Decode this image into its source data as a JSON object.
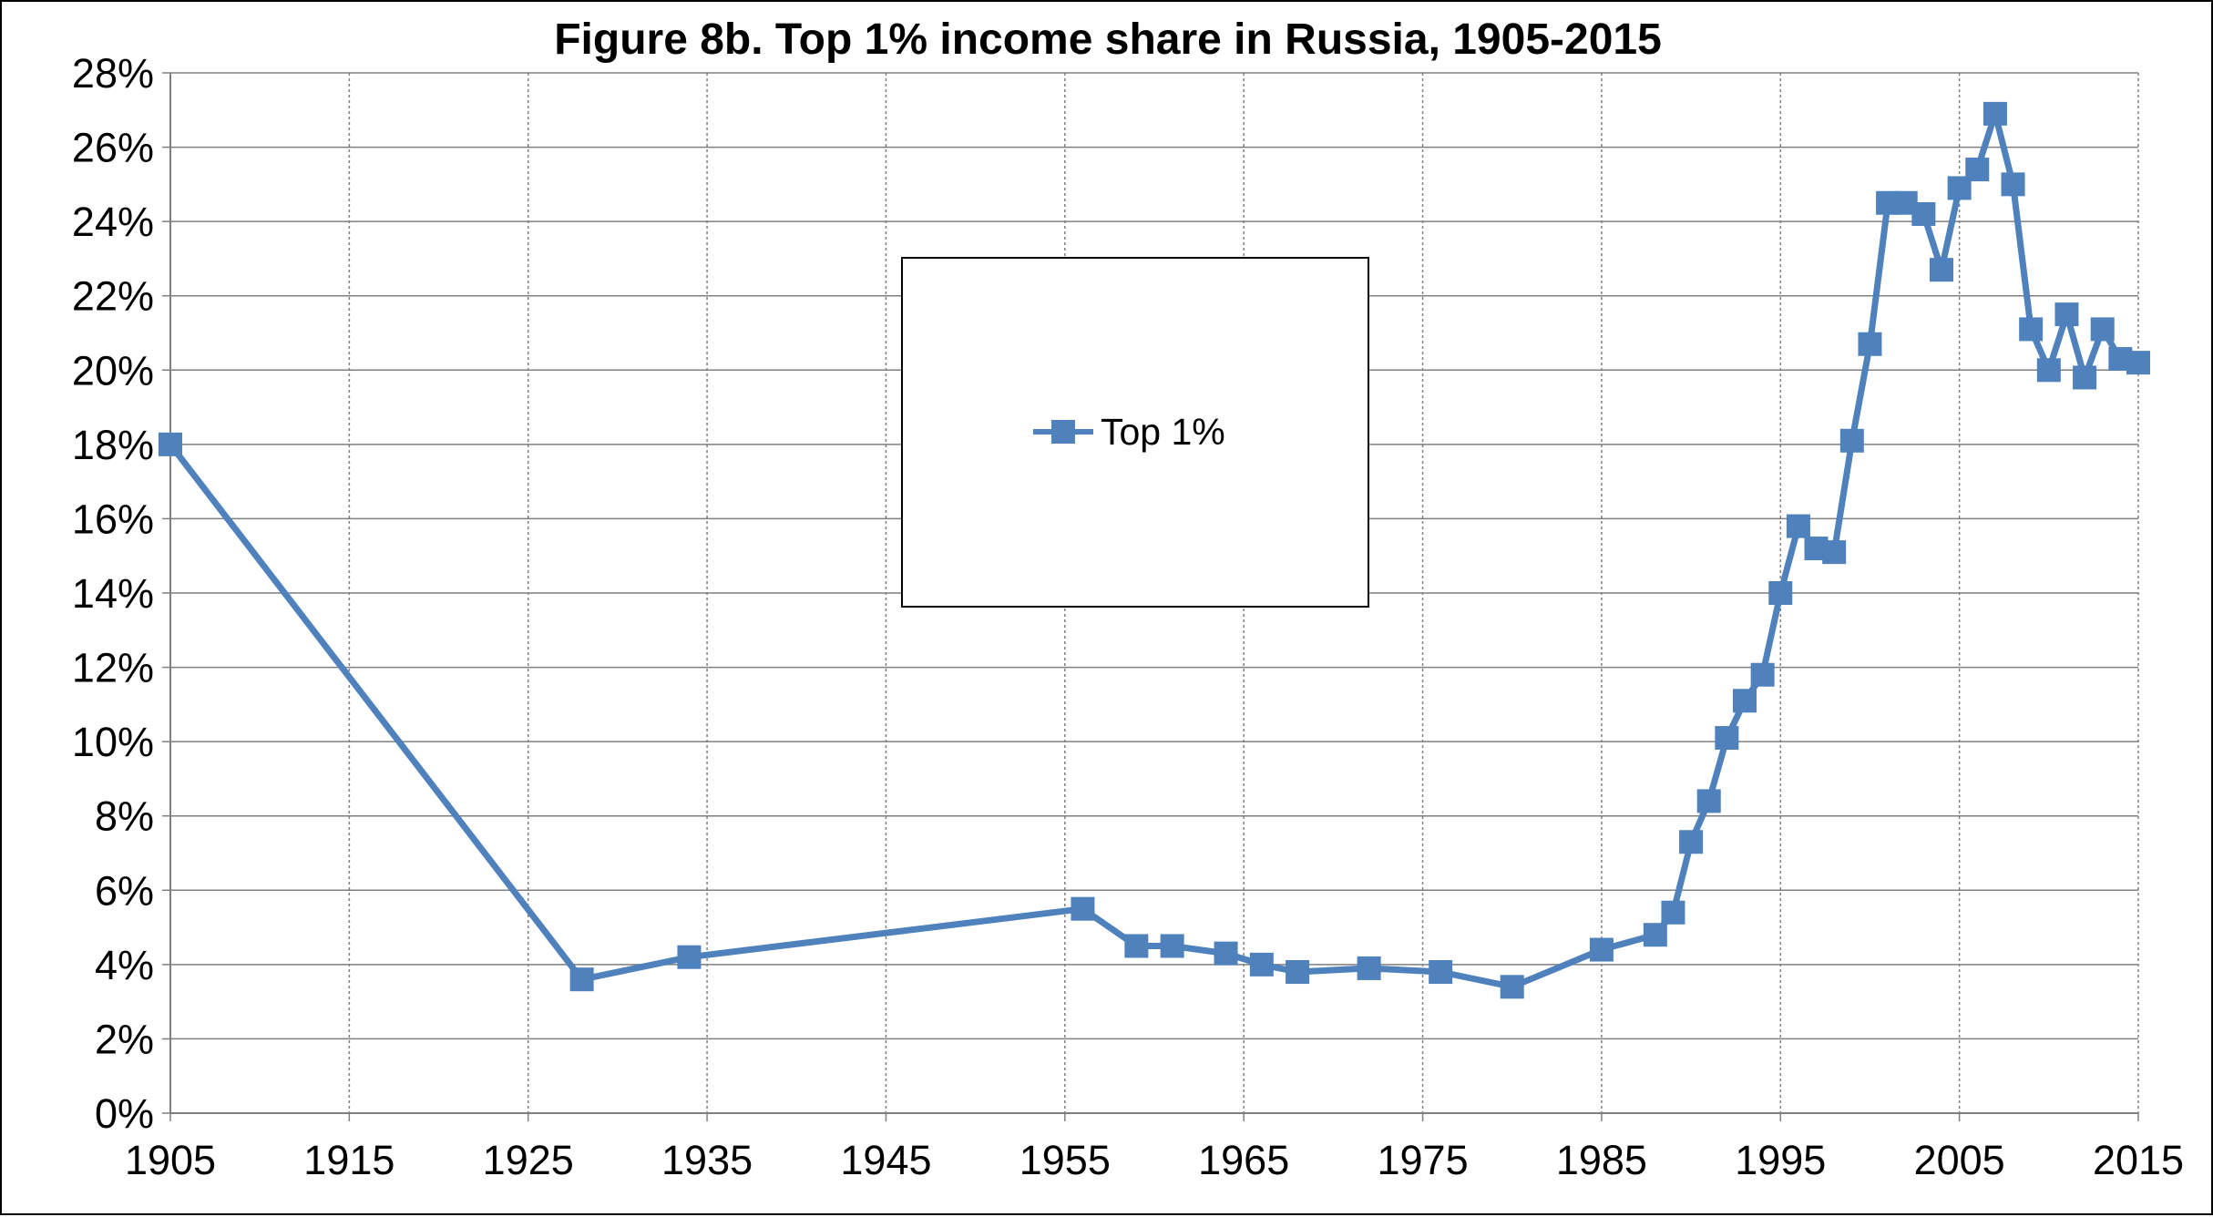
{
  "chart_data": {
    "type": "line",
    "title": "Figure 8b. Top 1% income share in Russia, 1905-2015",
    "xlabel": "",
    "ylabel": "",
    "xlim": [
      1905,
      2015
    ],
    "ylim": [
      0,
      28
    ],
    "x_ticks": [
      1905,
      1915,
      1925,
      1935,
      1945,
      1955,
      1965,
      1975,
      1985,
      1995,
      2005,
      2015
    ],
    "x_tick_labels": [
      "1905",
      "1915",
      "1925",
      "1935",
      "1945",
      "1955",
      "1965",
      "1975",
      "1985",
      "1995",
      "2005",
      "2015"
    ],
    "y_ticks": [
      0,
      2,
      4,
      6,
      8,
      10,
      12,
      14,
      16,
      18,
      20,
      22,
      24,
      26,
      28
    ],
    "y_tick_labels": [
      "0%",
      "2%",
      "4%",
      "6%",
      "8%",
      "10%",
      "12%",
      "14%",
      "16%",
      "18%",
      "20%",
      "22%",
      "24%",
      "26%",
      "28%"
    ],
    "grid": true,
    "legend_position": "center-left",
    "series": [
      {
        "name": "Top 1%",
        "color": "#4f81bd",
        "marker": "square",
        "points": [
          [
            1905,
            18.0
          ],
          [
            1928,
            3.6
          ],
          [
            1934,
            4.2
          ],
          [
            1956,
            5.5
          ],
          [
            1959,
            4.5
          ],
          [
            1961,
            4.5
          ],
          [
            1964,
            4.3
          ],
          [
            1966,
            4.0
          ],
          [
            1968,
            3.8
          ],
          [
            1972,
            3.9
          ],
          [
            1976,
            3.8
          ],
          [
            1980,
            3.4
          ],
          [
            1985,
            4.4
          ],
          [
            1988,
            4.8
          ],
          [
            1989,
            5.4
          ],
          [
            1990,
            7.3
          ],
          [
            1991,
            8.4
          ],
          [
            1992,
            10.1
          ],
          [
            1993,
            11.1
          ],
          [
            1994,
            11.8
          ],
          [
            1995,
            14.0
          ],
          [
            1996,
            15.8
          ],
          [
            1997,
            15.2
          ],
          [
            1998,
            15.1
          ],
          [
            1999,
            18.1
          ],
          [
            2000,
            20.7
          ],
          [
            2001,
            24.5
          ],
          [
            2002,
            24.5
          ],
          [
            2003,
            24.2
          ],
          [
            2004,
            22.7
          ],
          [
            2005,
            24.9
          ],
          [
            2006,
            25.4
          ],
          [
            2007,
            26.9
          ],
          [
            2008,
            25.0
          ],
          [
            2009,
            21.1
          ],
          [
            2010,
            20.0
          ],
          [
            2011,
            21.5
          ],
          [
            2012,
            19.8
          ],
          [
            2013,
            21.1
          ],
          [
            2014,
            20.3
          ],
          [
            2015,
            20.2
          ]
        ]
      }
    ]
  }
}
